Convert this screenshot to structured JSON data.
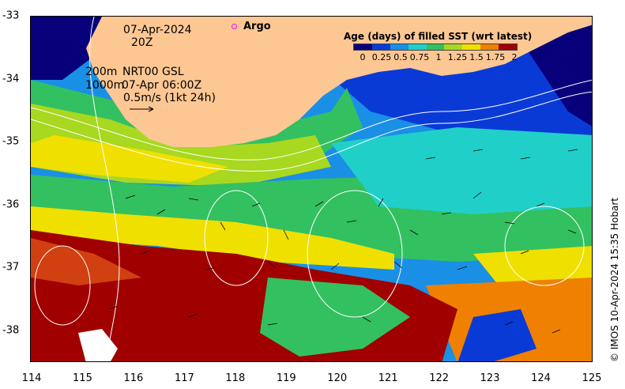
{
  "header": {
    "date": "07-Apr-2024",
    "time": "20Z",
    "argo_label": "Argo",
    "depth_200_label": "200m",
    "depth_1000_label": "1000m",
    "product_label": "NRT00 GSL",
    "product_time": "07-Apr 06:00Z",
    "vector_scale_label": "0.5m/s (1kt 24h)"
  },
  "colorbar": {
    "title": "Age (days) of filled SST (wrt latest)",
    "ticks": [
      "0",
      "0.25",
      "0.5",
      "0.75",
      "1",
      "1.25",
      "1.5",
      "1.75",
      "2"
    ],
    "colors": [
      "#08007a",
      "#0a3ad6",
      "#1a8fe6",
      "#20d0c8",
      "#33c060",
      "#a8d820",
      "#f0e000",
      "#f08000",
      "#a00000"
    ]
  },
  "axes": {
    "x_ticks": [
      "114",
      "115",
      "116",
      "117",
      "118",
      "119",
      "120",
      "121",
      "122",
      "123",
      "124",
      "125"
    ],
    "y_ticks": [
      "-33",
      "-34",
      "-35",
      "-36",
      "-37",
      "-38"
    ]
  },
  "colors": {
    "land": "#fdc794",
    "argo": "#ff00ff"
  },
  "credit": "© IMOS 10-Apr-2024 15:35 Hobart"
}
